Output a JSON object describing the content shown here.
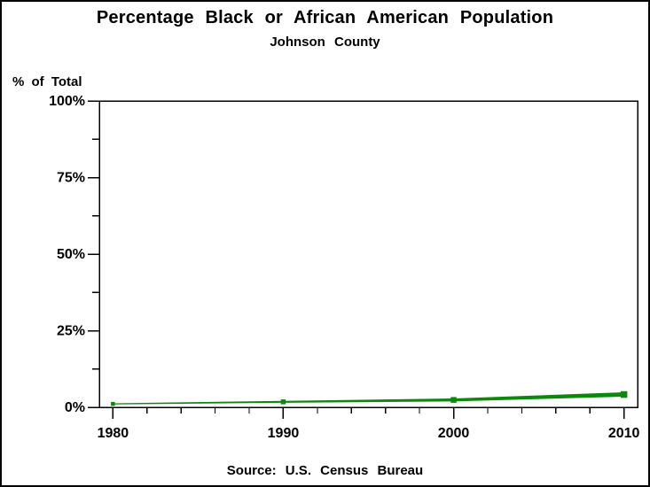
{
  "title": "Percentage Black or African American Population",
  "subtitle": "Johnson County",
  "y_axis_label": "% of Total",
  "source": "Source: U.S. Census Bureau",
  "colors": {
    "line": "#0e870e",
    "text": "#000000",
    "axis": "#000000",
    "background": "#ffffff",
    "border": "#000000"
  },
  "chart_data": {
    "type": "line",
    "title": "Percentage Black or African American Population",
    "subtitle": "Johnson County",
    "xlabel": "",
    "ylabel": "% of Total",
    "series": [
      {
        "name": "Percent Black or African American",
        "x": [
          1980,
          1990,
          2000,
          2010
        ],
        "values": [
          1.3,
          2.1,
          2.9,
          4.9
        ]
      }
    ],
    "xlim": [
      1979.2,
      2010.8
    ],
    "ylim": [
      0,
      100
    ],
    "x_ticks": [
      1980,
      1990,
      2000,
      2010
    ],
    "x_tick_labels": [
      "1980",
      "1990",
      "2000",
      "2010"
    ],
    "x_minor_tick_step_years": 2,
    "y_ticks": [
      0,
      25,
      50,
      75,
      100
    ],
    "y_tick_labels": [
      "0%",
      "25%",
      "50%",
      "75%",
      "100%"
    ],
    "y_minor_ticks": [
      12.5,
      37.5,
      62.5,
      87.5
    ],
    "grid": false,
    "legend": "none",
    "marker": "filled-square",
    "annotation": "Source: U.S. Census Bureau"
  }
}
